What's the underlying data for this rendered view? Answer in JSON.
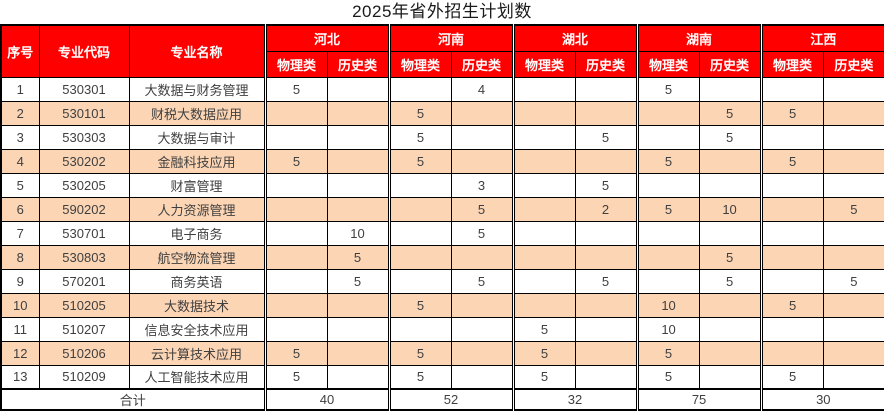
{
  "title": "2025年省外招生计划数",
  "colors": {
    "header_bg": "#ff0000",
    "header_text": "#ffffff",
    "row_bg": "#ffffff",
    "row_alt_bg": "#fcd5b5",
    "text": "#3f3f3f",
    "border": "#000000"
  },
  "table": {
    "fixed_headers": [
      "序号",
      "专业代码",
      "专业名称"
    ],
    "province_headers": [
      "河北",
      "河南",
      "湖北",
      "湖南",
      "江西"
    ],
    "sub_headers": [
      "物理类",
      "历史类"
    ],
    "rows": [
      {
        "no": "1",
        "code": "530301",
        "name": "大数据与财务管理",
        "values": [
          "5",
          "",
          "",
          "4",
          "",
          "",
          "5",
          "",
          "",
          ""
        ]
      },
      {
        "no": "2",
        "code": "530101",
        "name": "财税大数据应用",
        "values": [
          "",
          "",
          "5",
          "",
          "",
          "",
          "",
          "5",
          "5",
          ""
        ]
      },
      {
        "no": "3",
        "code": "530303",
        "name": "大数据与审计",
        "values": [
          "",
          "",
          "5",
          "",
          "",
          "5",
          "",
          "5",
          "",
          ""
        ]
      },
      {
        "no": "4",
        "code": "530202",
        "name": "金融科技应用",
        "values": [
          "5",
          "",
          "5",
          "",
          "",
          "",
          "5",
          "",
          "5",
          ""
        ]
      },
      {
        "no": "5",
        "code": "530205",
        "name": "财富管理",
        "values": [
          "",
          "",
          "",
          "3",
          "",
          "5",
          "",
          "",
          "",
          ""
        ]
      },
      {
        "no": "6",
        "code": "590202",
        "name": "人力资源管理",
        "values": [
          "",
          "",
          "",
          "5",
          "",
          "2",
          "5",
          "10",
          "",
          "5"
        ]
      },
      {
        "no": "7",
        "code": "530701",
        "name": "电子商务",
        "values": [
          "",
          "10",
          "",
          "5",
          "",
          "",
          "",
          "",
          "",
          ""
        ]
      },
      {
        "no": "8",
        "code": "530803",
        "name": "航空物流管理",
        "values": [
          "",
          "5",
          "",
          "",
          "",
          "",
          "",
          "5",
          "",
          ""
        ]
      },
      {
        "no": "9",
        "code": "570201",
        "name": "商务英语",
        "values": [
          "",
          "5",
          "",
          "5",
          "",
          "5",
          "",
          "5",
          "",
          "5"
        ]
      },
      {
        "no": "10",
        "code": "510205",
        "name": "大数据技术",
        "values": [
          "",
          "",
          "5",
          "",
          "",
          "",
          "10",
          "",
          "5",
          ""
        ]
      },
      {
        "no": "11",
        "code": "510207",
        "name": "信息安全技术应用",
        "values": [
          "",
          "",
          "",
          "",
          "5",
          "",
          "10",
          "",
          "",
          ""
        ]
      },
      {
        "no": "12",
        "code": "510206",
        "name": "云计算技术应用",
        "values": [
          "5",
          "",
          "5",
          "",
          "5",
          "",
          "5",
          "",
          "",
          ""
        ]
      },
      {
        "no": "13",
        "code": "510209",
        "name": "人工智能技术应用",
        "values": [
          "5",
          "",
          "5",
          "",
          "5",
          "",
          "5",
          "",
          "5",
          ""
        ]
      }
    ],
    "total_label": "合计",
    "totals": [
      "40",
      "52",
      "32",
      "75",
      "30"
    ]
  }
}
